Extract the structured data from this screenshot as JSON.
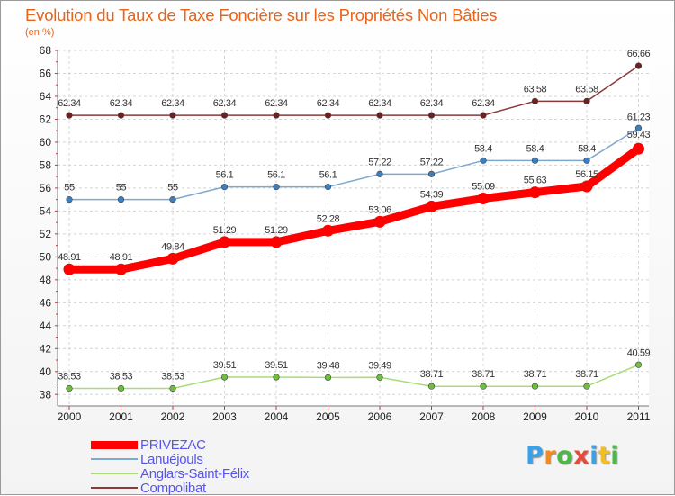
{
  "title": "Evolution du Taux de Taxe Foncière sur les Propriétés Non Bâties",
  "unit_label": "(en %)",
  "brand": {
    "letters": [
      "P",
      "r",
      "o",
      "x",
      "i",
      "t",
      "i"
    ],
    "colors": [
      "#3aa0e8",
      "#f28a1e",
      "#4cb848",
      "#e84a3a",
      "#3aa0e8",
      "#f2c01e",
      "#4cb848"
    ]
  },
  "chart_data": {
    "type": "line",
    "title": "Evolution du Taux de Taxe Foncière sur les Propriétés Non Bâties",
    "ylabel": "(en %)",
    "x": [
      "2000",
      "2001",
      "2002",
      "2003",
      "2004",
      "2005",
      "2006",
      "2007",
      "2008",
      "2009",
      "2010",
      "2011"
    ],
    "ylim": [
      37,
      68
    ],
    "yticks": [
      38,
      40,
      42,
      44,
      46,
      48,
      50,
      52,
      54,
      56,
      58,
      60,
      62,
      64,
      66,
      68
    ],
    "grid": "horizontal dashed",
    "legend": "bottom-left",
    "series": [
      {
        "name": "PRIVEZAC",
        "color": "#ff0000",
        "values": [
          48.91,
          48.91,
          49.84,
          51.29,
          51.29,
          52.28,
          53.06,
          54.39,
          55.09,
          55.63,
          56.15,
          59.43
        ],
        "labels": [
          "48.91",
          "48.91",
          "49.84",
          "51.29",
          "51.29",
          "52.28",
          "53.06",
          "54.39",
          "55.09",
          "55.63",
          "56.15",
          "59.43"
        ]
      },
      {
        "name": "Lanuéjouls",
        "color": "#7fa8d0",
        "marker": "#3a7fc0",
        "values": [
          55,
          55,
          55,
          56.1,
          56.1,
          56.1,
          57.22,
          57.22,
          58.4,
          58.4,
          58.4,
          61.23
        ],
        "labels": [
          "55",
          "55",
          "55",
          "56.1",
          "56.1",
          "56.1",
          "57.22",
          "57.22",
          "58.4",
          "58.4",
          "58.4",
          "61.23"
        ]
      },
      {
        "name": "Anglars-Saint-Félix",
        "color": "#a8dc78",
        "marker": "#6cc03a",
        "values": [
          38.53,
          38.53,
          38.53,
          39.51,
          39.51,
          39.48,
          39.49,
          38.71,
          38.71,
          38.71,
          38.71,
          40.59
        ],
        "labels": [
          "38.53",
          "38.53",
          "38.53",
          "39.51",
          "39.51",
          "39.48",
          "39.49",
          "38.71",
          "38.71",
          "38.71",
          "38.71",
          "40.59"
        ]
      },
      {
        "name": "Compolibat",
        "color": "#8b3a3a",
        "marker": "#6e2020",
        "values": [
          62.34,
          62.34,
          62.34,
          62.34,
          62.34,
          62.34,
          62.34,
          62.34,
          62.34,
          63.58,
          63.58,
          66.66
        ],
        "labels": [
          "62.34",
          "62.34",
          "62.34",
          "62.34",
          "62.34",
          "62.34",
          "62.34",
          "62.34",
          "62.34",
          "63.58",
          "63.58",
          "66.66"
        ]
      }
    ]
  }
}
